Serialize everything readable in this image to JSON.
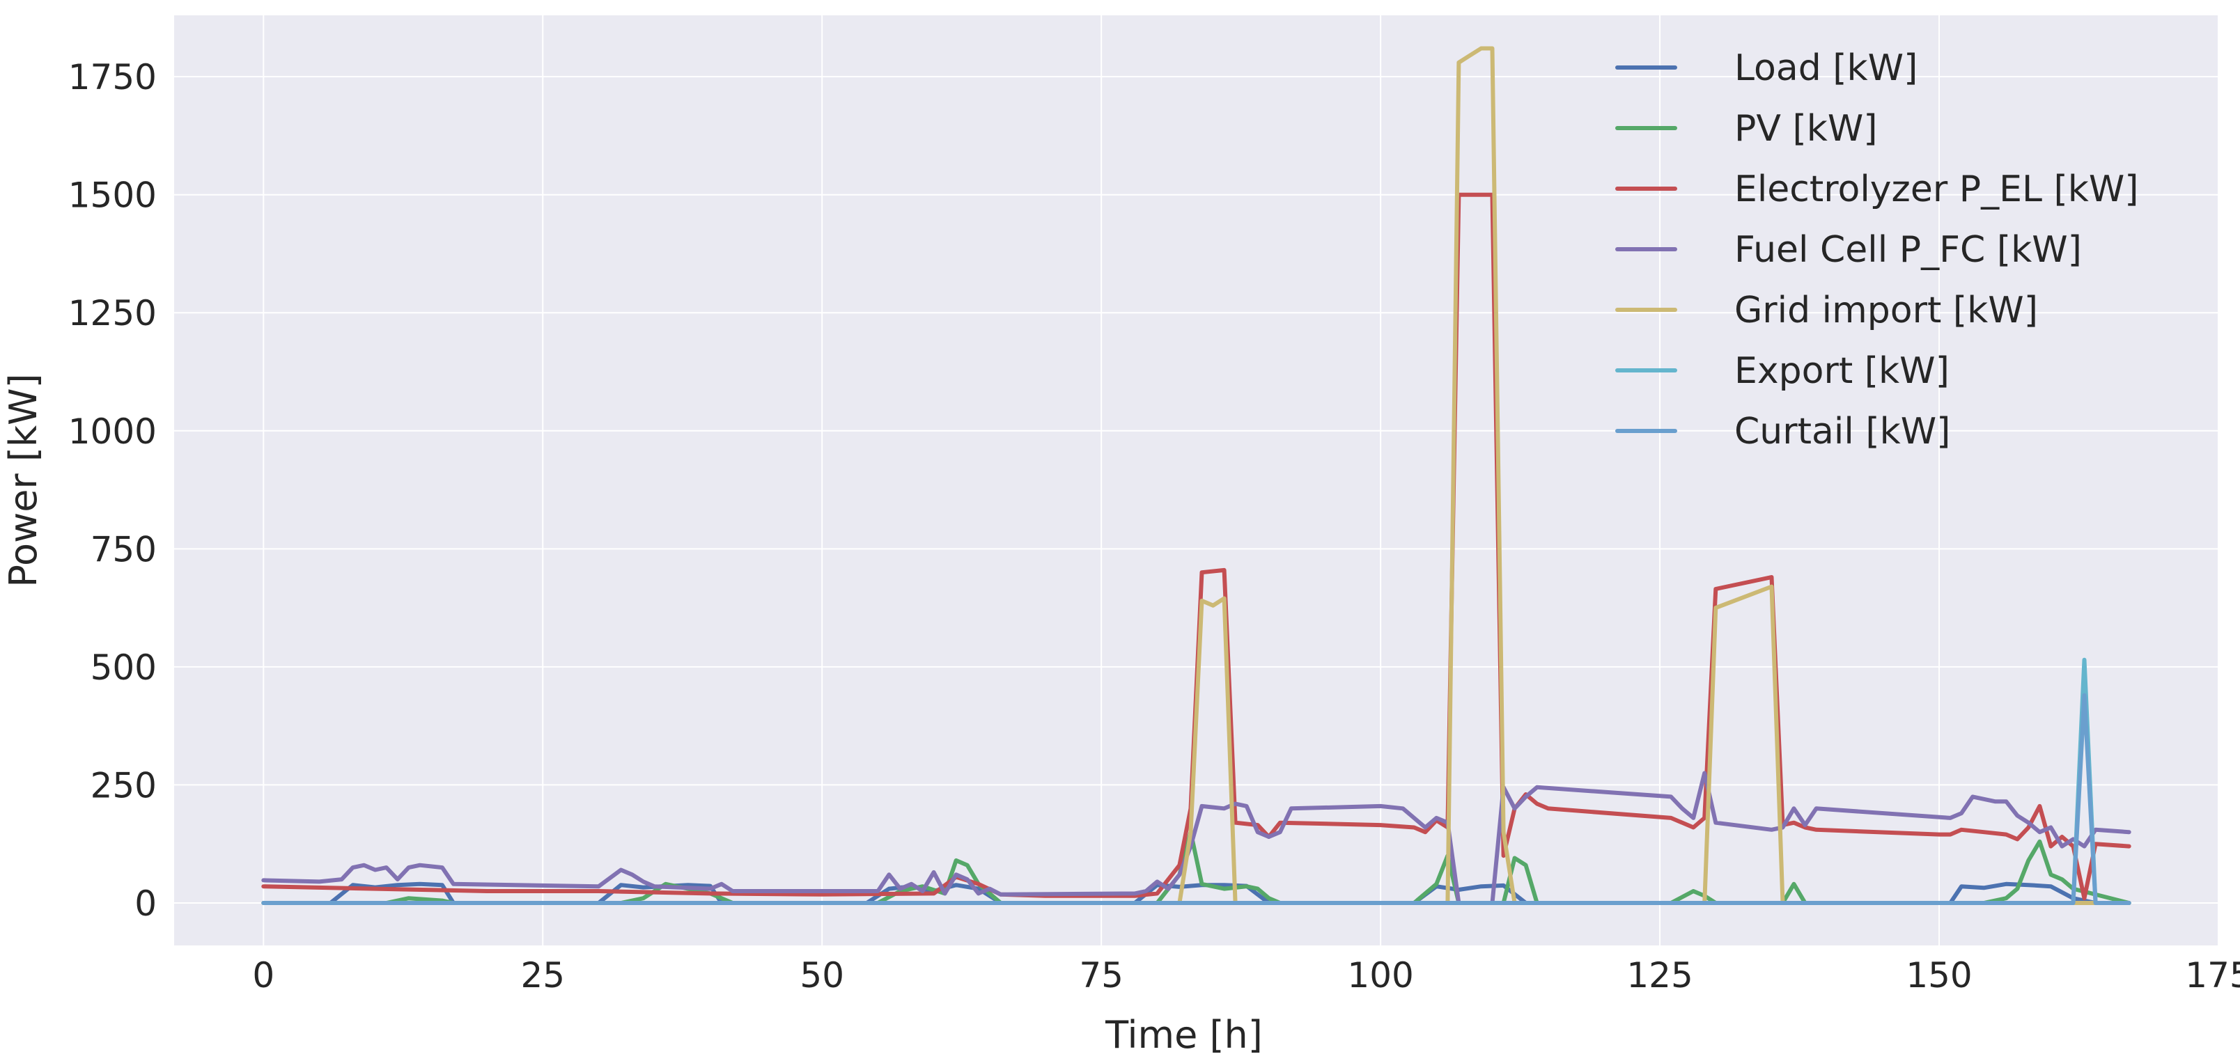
{
  "chart_data": {
    "type": "line",
    "title": "",
    "xlabel": "Time [h]",
    "ylabel": "Power [kW]",
    "xlim": [
      -8,
      175
    ],
    "ylim": [
      -90,
      1880
    ],
    "xticks": [
      0,
      25,
      50,
      75,
      100,
      125,
      150,
      175
    ],
    "yticks": [
      0,
      250,
      500,
      750,
      1000,
      1250,
      1500,
      1750
    ],
    "grid": true,
    "legend_position": "top-right",
    "series": [
      {
        "name": "Load [kW]",
        "color": "#4c72b0",
        "x": [
          0,
          6,
          8,
          10,
          12,
          14,
          16,
          17,
          30,
          32,
          34,
          38,
          40,
          41,
          54,
          56,
          58,
          60,
          62,
          64,
          66,
          78,
          80,
          82,
          84,
          86,
          88,
          90,
          103,
          105,
          107,
          109,
          111,
          113,
          127,
          129,
          151,
          152,
          154,
          156,
          158,
          160,
          162,
          164,
          167
        ],
        "y": [
          0,
          0,
          38,
          33,
          38,
          40,
          38,
          0,
          0,
          38,
          33,
          38,
          36,
          0,
          0,
          30,
          35,
          25,
          38,
          30,
          0,
          0,
          38,
          34,
          38,
          38,
          36,
          0,
          0,
          35,
          28,
          35,
          37,
          0,
          0,
          0,
          0,
          35,
          32,
          40,
          38,
          35,
          10,
          0,
          0
        ]
      },
      {
        "name": "PV [kW]",
        "color": "#55a868",
        "x": [
          0,
          11,
          13,
          16,
          17,
          32,
          34,
          36,
          38,
          40,
          42,
          55,
          57,
          59,
          61,
          62,
          63,
          64,
          66,
          80,
          82,
          83,
          84,
          86,
          88,
          89,
          90,
          91,
          103,
          105,
          106,
          107,
          111,
          112,
          113,
          114,
          126,
          128,
          129,
          130,
          136,
          137,
          138,
          154,
          156,
          157,
          158,
          159,
          160,
          161,
          162,
          167
        ],
        "y": [
          0,
          0,
          10,
          5,
          0,
          0,
          10,
          40,
          30,
          20,
          0,
          0,
          25,
          35,
          20,
          90,
          80,
          40,
          0,
          0,
          60,
          150,
          40,
          30,
          35,
          30,
          10,
          0,
          0,
          40,
          100,
          0,
          0,
          95,
          80,
          0,
          0,
          25,
          15,
          0,
          0,
          40,
          0,
          0,
          10,
          30,
          90,
          130,
          60,
          50,
          30,
          0
        ]
      },
      {
        "name": "Electrolyzer P_EL [kW]",
        "color": "#c44e52",
        "x": [
          0,
          10,
          20,
          30,
          40,
          50,
          60,
          62,
          64,
          66,
          70,
          78,
          80,
          82,
          83,
          84,
          86,
          87,
          89,
          90,
          91,
          100,
          103,
          104,
          105,
          106,
          107,
          110,
          111,
          112,
          113,
          114,
          115,
          126,
          128,
          129,
          130,
          135,
          136,
          137,
          138,
          139,
          150,
          151,
          152,
          154,
          156,
          157,
          158,
          159,
          160,
          161,
          162,
          163,
          164,
          167
        ],
        "y": [
          35,
          30,
          25,
          25,
          20,
          18,
          20,
          55,
          40,
          18,
          15,
          15,
          20,
          80,
          200,
          700,
          705,
          170,
          165,
          140,
          170,
          165,
          160,
          150,
          175,
          160,
          1500,
          1500,
          100,
          200,
          230,
          210,
          200,
          180,
          160,
          180,
          665,
          690,
          165,
          170,
          160,
          155,
          145,
          145,
          155,
          150,
          145,
          135,
          160,
          205,
          120,
          140,
          120,
          10,
          125,
          120
        ]
      },
      {
        "name": "Fuel Cell P_FC [kW]",
        "color": "#8172b2",
        "x": [
          0,
          5,
          7,
          8,
          9,
          10,
          11,
          12,
          13,
          14,
          16,
          17,
          30,
          32,
          33,
          34,
          35,
          40,
          41,
          42,
          55,
          56,
          57,
          58,
          59,
          60,
          61,
          62,
          63,
          64,
          65,
          66,
          78,
          79,
          80,
          81,
          82,
          83,
          84,
          86,
          87,
          88,
          89,
          90,
          91,
          92,
          100,
          102,
          103,
          104,
          105,
          106,
          107,
          110,
          111,
          112,
          113,
          114,
          126,
          127,
          128,
          129,
          130,
          135,
          136,
          137,
          138,
          139,
          151,
          152,
          153,
          154,
          155,
          156,
          157,
          158,
          159,
          160,
          161,
          162,
          163,
          164,
          167
        ],
        "y": [
          48,
          45,
          50,
          75,
          80,
          70,
          75,
          50,
          75,
          80,
          75,
          40,
          35,
          70,
          60,
          45,
          35,
          30,
          40,
          25,
          25,
          60,
          30,
          40,
          25,
          65,
          20,
          60,
          50,
          20,
          30,
          18,
          20,
          25,
          45,
          30,
          60,
          120,
          205,
          200,
          210,
          205,
          150,
          140,
          150,
          200,
          205,
          200,
          180,
          160,
          180,
          170,
          0,
          0,
          245,
          200,
          225,
          245,
          225,
          200,
          180,
          275,
          170,
          155,
          160,
          200,
          165,
          200,
          180,
          190,
          225,
          220,
          215,
          215,
          185,
          170,
          150,
          160,
          120,
          135,
          120,
          155,
          150
        ]
      },
      {
        "name": "Grid import [kW]",
        "color": "#ccb974",
        "x": [
          0,
          82,
          83,
          84,
          85,
          86,
          87,
          105,
          106,
          107,
          108,
          109,
          110,
          111,
          112,
          128,
          129,
          130,
          135,
          136,
          167
        ],
        "y": [
          0,
          0,
          150,
          640,
          630,
          645,
          0,
          0,
          0,
          1780,
          1795,
          1810,
          1810,
          150,
          0,
          0,
          0,
          625,
          670,
          0,
          0
        ]
      },
      {
        "name": "Export [kW]",
        "color": "#64b5cd",
        "x": [
          0,
          161,
          162,
          163,
          164,
          167
        ],
        "y": [
          0,
          0,
          0,
          515,
          0,
          0
        ]
      },
      {
        "name": "Curtail [kW]",
        "color": "#6a9fce",
        "x": [
          0,
          162,
          163,
          164,
          167
        ],
        "y": [
          0,
          0,
          440,
          0,
          0
        ]
      }
    ]
  }
}
